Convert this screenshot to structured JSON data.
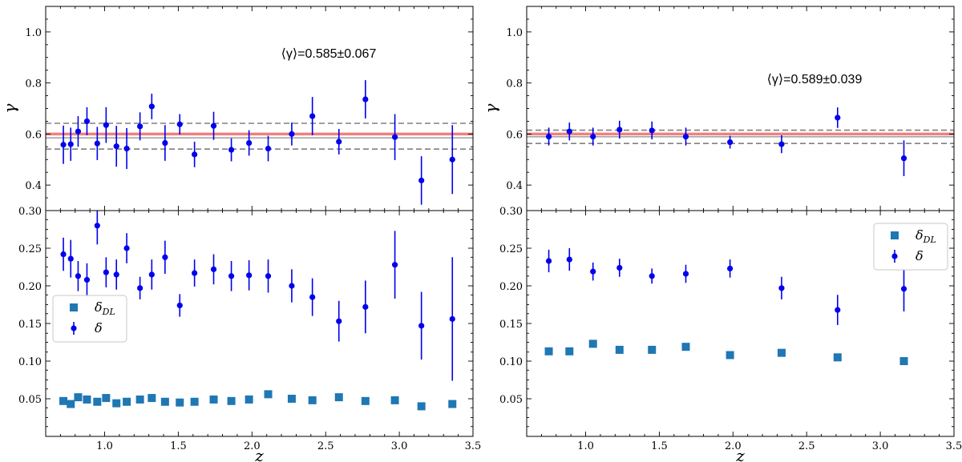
{
  "chart_data": [
    {
      "type": "scatter",
      "panel": "top-left",
      "ylabel": "γ",
      "ylim": [
        0.3,
        1.1
      ],
      "yticks": [
        "0.4",
        "0.6",
        "0.8",
        "1.0"
      ],
      "xlim": [
        0.6,
        3.5
      ],
      "annotation": "⟨γ⟩=0.585±0.067",
      "reference_lines": {
        "solid": 0.6,
        "mean": 0.585,
        "dashed_low": 0.541,
        "dashed_high": 0.642
      },
      "series": [
        {
          "name": "γ",
          "color": "#0000ee",
          "points": [
            {
              "x": 0.72,
              "y": 0.558,
              "err": 0.075
            },
            {
              "x": 0.77,
              "y": 0.56,
              "err": 0.065
            },
            {
              "x": 0.82,
              "y": 0.61,
              "err": 0.06
            },
            {
              "x": 0.88,
              "y": 0.65,
              "err": 0.055
            },
            {
              "x": 0.95,
              "y": 0.563,
              "err": 0.065
            },
            {
              "x": 1.01,
              "y": 0.635,
              "err": 0.07
            },
            {
              "x": 1.08,
              "y": 0.552,
              "err": 0.08
            },
            {
              "x": 1.15,
              "y": 0.543,
              "err": 0.08
            },
            {
              "x": 1.24,
              "y": 0.63,
              "err": 0.055
            },
            {
              "x": 1.32,
              "y": 0.708,
              "err": 0.05
            },
            {
              "x": 1.41,
              "y": 0.565,
              "err": 0.07
            },
            {
              "x": 1.51,
              "y": 0.638,
              "err": 0.04
            },
            {
              "x": 1.61,
              "y": 0.52,
              "err": 0.05
            },
            {
              "x": 1.74,
              "y": 0.632,
              "err": 0.055
            },
            {
              "x": 1.86,
              "y": 0.538,
              "err": 0.045
            },
            {
              "x": 1.98,
              "y": 0.565,
              "err": 0.05
            },
            {
              "x": 2.11,
              "y": 0.543,
              "err": 0.05
            },
            {
              "x": 2.27,
              "y": 0.6,
              "err": 0.045
            },
            {
              "x": 2.41,
              "y": 0.67,
              "err": 0.075
            },
            {
              "x": 2.59,
              "y": 0.57,
              "err": 0.05
            },
            {
              "x": 2.77,
              "y": 0.736,
              "err": 0.075
            },
            {
              "x": 2.97,
              "y": 0.588,
              "err": 0.09
            },
            {
              "x": 3.15,
              "y": 0.418,
              "err": 0.095
            },
            {
              "x": 3.36,
              "y": 0.5,
              "err": 0.135
            }
          ]
        }
      ]
    },
    {
      "type": "scatter",
      "panel": "top-right",
      "ylabel": "γ",
      "ylim": [
        0.3,
        1.1
      ],
      "yticks": [
        "0.4",
        "0.6",
        "0.8",
        "1.0"
      ],
      "xlim": [
        0.6,
        3.5
      ],
      "annotation": "⟨γ⟩=0.589±0.039",
      "reference_lines": {
        "solid": 0.6,
        "mean": 0.589,
        "dashed_low": 0.563,
        "dashed_high": 0.615
      },
      "series": [
        {
          "name": "γ",
          "color": "#0000ee",
          "points": [
            {
              "x": 0.75,
              "y": 0.59,
              "err": 0.035
            },
            {
              "x": 0.89,
              "y": 0.61,
              "err": 0.035
            },
            {
              "x": 1.05,
              "y": 0.59,
              "err": 0.035
            },
            {
              "x": 1.23,
              "y": 0.617,
              "err": 0.035
            },
            {
              "x": 1.45,
              "y": 0.614,
              "err": 0.035
            },
            {
              "x": 1.68,
              "y": 0.59,
              "err": 0.035
            },
            {
              "x": 1.98,
              "y": 0.568,
              "err": 0.025
            },
            {
              "x": 2.33,
              "y": 0.56,
              "err": 0.035
            },
            {
              "x": 2.71,
              "y": 0.664,
              "err": 0.04
            },
            {
              "x": 3.16,
              "y": 0.505,
              "err": 0.07
            }
          ]
        }
      ]
    },
    {
      "type": "scatter",
      "panel": "bottom-left",
      "xlabel": "z",
      "ylim": [
        0.0,
        0.3
      ],
      "yticks": [
        "0.05",
        "0.10",
        "0.15",
        "0.20",
        "0.25",
        "0.30"
      ],
      "xlim": [
        0.6,
        3.5
      ],
      "xticks": [
        "1.0",
        "1.5",
        "2.0",
        "2.5",
        "3.0",
        "3.5"
      ],
      "legend": {
        "placement": "middle-left",
        "entries": [
          "δ_DL",
          "δ"
        ]
      },
      "series": [
        {
          "name": "δ_DL",
          "marker": "square",
          "color": "#1f77b4",
          "points": [
            {
              "x": 0.72,
              "y": 0.047
            },
            {
              "x": 0.77,
              "y": 0.043
            },
            {
              "x": 0.82,
              "y": 0.052
            },
            {
              "x": 0.88,
              "y": 0.049
            },
            {
              "x": 0.95,
              "y": 0.046
            },
            {
              "x": 1.01,
              "y": 0.051
            },
            {
              "x": 1.08,
              "y": 0.044
            },
            {
              "x": 1.15,
              "y": 0.046
            },
            {
              "x": 1.24,
              "y": 0.049
            },
            {
              "x": 1.32,
              "y": 0.051
            },
            {
              "x": 1.41,
              "y": 0.046
            },
            {
              "x": 1.51,
              "y": 0.045
            },
            {
              "x": 1.61,
              "y": 0.046
            },
            {
              "x": 1.74,
              "y": 0.049
            },
            {
              "x": 1.86,
              "y": 0.047
            },
            {
              "x": 1.98,
              "y": 0.049
            },
            {
              "x": 2.11,
              "y": 0.056
            },
            {
              "x": 2.27,
              "y": 0.05
            },
            {
              "x": 2.41,
              "y": 0.048
            },
            {
              "x": 2.59,
              "y": 0.052
            },
            {
              "x": 2.77,
              "y": 0.047
            },
            {
              "x": 2.97,
              "y": 0.048
            },
            {
              "x": 3.15,
              "y": 0.04
            },
            {
              "x": 3.36,
              "y": 0.043
            }
          ]
        },
        {
          "name": "δ",
          "marker": "circle",
          "color": "#0000ee",
          "points": [
            {
              "x": 0.72,
              "y": 0.242,
              "err": 0.022
            },
            {
              "x": 0.77,
              "y": 0.236,
              "err": 0.025
            },
            {
              "x": 0.82,
              "y": 0.213,
              "err": 0.02
            },
            {
              "x": 0.88,
              "y": 0.208,
              "err": 0.022
            },
            {
              "x": 0.95,
              "y": 0.28,
              "err": 0.025
            },
            {
              "x": 1.01,
              "y": 0.218,
              "err": 0.02
            },
            {
              "x": 1.08,
              "y": 0.215,
              "err": 0.02
            },
            {
              "x": 1.15,
              "y": 0.25,
              "err": 0.02
            },
            {
              "x": 1.24,
              "y": 0.197,
              "err": 0.015
            },
            {
              "x": 1.32,
              "y": 0.215,
              "err": 0.02
            },
            {
              "x": 1.41,
              "y": 0.238,
              "err": 0.022
            },
            {
              "x": 1.51,
              "y": 0.174,
              "err": 0.015
            },
            {
              "x": 1.61,
              "y": 0.217,
              "err": 0.018
            },
            {
              "x": 1.74,
              "y": 0.222,
              "err": 0.02
            },
            {
              "x": 1.86,
              "y": 0.213,
              "err": 0.02
            },
            {
              "x": 1.98,
              "y": 0.214,
              "err": 0.02
            },
            {
              "x": 2.11,
              "y": 0.213,
              "err": 0.022
            },
            {
              "x": 2.27,
              "y": 0.2,
              "err": 0.022
            },
            {
              "x": 2.41,
              "y": 0.185,
              "err": 0.025
            },
            {
              "x": 2.59,
              "y": 0.153,
              "err": 0.027
            },
            {
              "x": 2.77,
              "y": 0.172,
              "err": 0.035
            },
            {
              "x": 2.97,
              "y": 0.228,
              "err": 0.045
            },
            {
              "x": 3.15,
              "y": 0.147,
              "err": 0.045
            },
            {
              "x": 3.36,
              "y": 0.156,
              "err": 0.082
            }
          ]
        }
      ]
    },
    {
      "type": "scatter",
      "panel": "bottom-right",
      "xlabel": "z",
      "ylim": [
        0.0,
        0.3
      ],
      "yticks": [
        "0.05",
        "0.10",
        "0.15",
        "0.20",
        "0.25",
        "0.30"
      ],
      "xlim": [
        0.6,
        3.5
      ],
      "xticks": [
        "1.0",
        "1.5",
        "2.0",
        "2.5",
        "3.0",
        "3.5"
      ],
      "legend": {
        "placement": "top-right",
        "entries": [
          "δ_DL",
          "δ"
        ]
      },
      "series": [
        {
          "name": "δ_DL",
          "marker": "square",
          "color": "#1f77b4",
          "points": [
            {
              "x": 0.75,
              "y": 0.113
            },
            {
              "x": 0.89,
              "y": 0.113
            },
            {
              "x": 1.05,
              "y": 0.123
            },
            {
              "x": 1.23,
              "y": 0.115
            },
            {
              "x": 1.45,
              "y": 0.115
            },
            {
              "x": 1.68,
              "y": 0.119
            },
            {
              "x": 1.98,
              "y": 0.108
            },
            {
              "x": 2.33,
              "y": 0.111
            },
            {
              "x": 2.71,
              "y": 0.105
            },
            {
              "x": 3.16,
              "y": 0.1
            }
          ]
        },
        {
          "name": "δ",
          "marker": "circle",
          "color": "#0000ee",
          "points": [
            {
              "x": 0.75,
              "y": 0.233,
              "err": 0.015
            },
            {
              "x": 0.89,
              "y": 0.235,
              "err": 0.015
            },
            {
              "x": 1.05,
              "y": 0.219,
              "err": 0.012
            },
            {
              "x": 1.23,
              "y": 0.224,
              "err": 0.012
            },
            {
              "x": 1.45,
              "y": 0.213,
              "err": 0.01
            },
            {
              "x": 1.68,
              "y": 0.216,
              "err": 0.012
            },
            {
              "x": 1.98,
              "y": 0.223,
              "err": 0.012
            },
            {
              "x": 2.33,
              "y": 0.197,
              "err": 0.015
            },
            {
              "x": 2.71,
              "y": 0.168,
              "err": 0.02
            },
            {
              "x": 3.16,
              "y": 0.196,
              "err": 0.03
            }
          ]
        }
      ]
    }
  ],
  "colors": {
    "blue": "#0000ee",
    "steel_blue": "#1f77b4",
    "red_line": "#f08080",
    "gray_line": "#808080"
  }
}
